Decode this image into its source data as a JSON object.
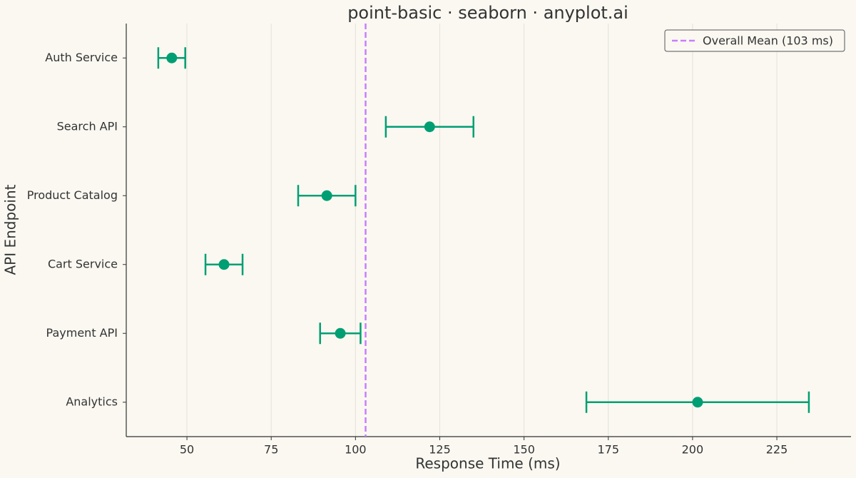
{
  "chart_data": {
    "type": "point",
    "title": "point-basic · seaborn · anyplot.ai",
    "x_label": "Response Time (ms)",
    "y_label": "API Endpoint",
    "categories": [
      "Auth Service",
      "Search API",
      "Product Catalog",
      "Cart Service",
      "Payment API",
      "Analytics"
    ],
    "values": [
      45.5,
      122,
      91.5,
      61,
      95.5,
      201.5
    ],
    "errors": [
      4,
      13,
      8.5,
      5.5,
      6,
      33
    ],
    "color": "#009e73",
    "mean_line": {
      "value": 103,
      "label": "Overall Mean (103 ms)",
      "color": "#c77dff",
      "style": "dashed"
    },
    "xlim": [
      32,
      247
    ],
    "xticks": [
      50,
      75,
      100,
      125,
      150,
      175,
      200,
      225
    ],
    "grid": true,
    "legend": "upper right"
  }
}
